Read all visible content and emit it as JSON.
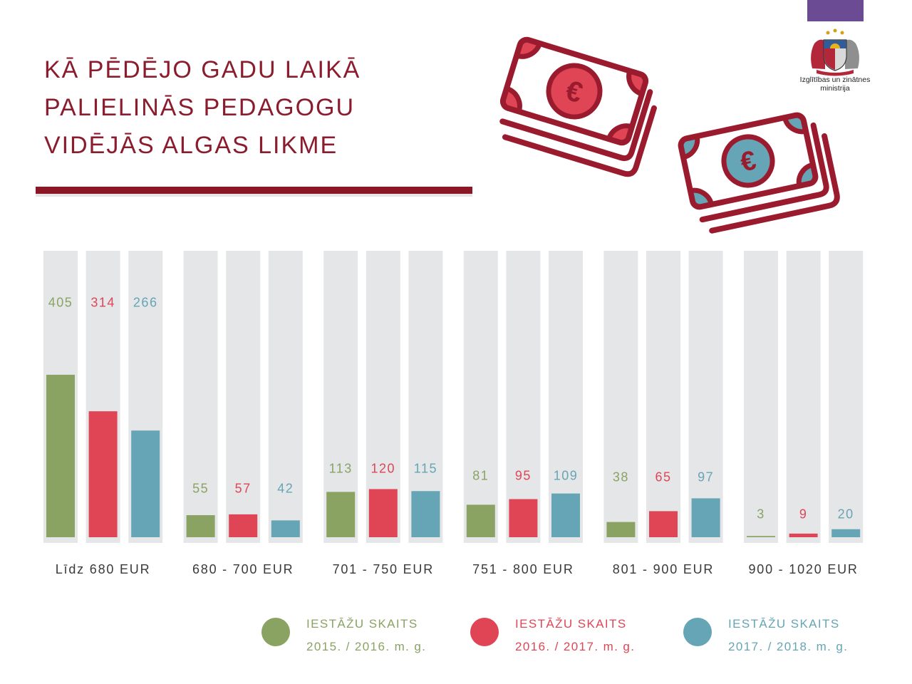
{
  "heading": {
    "lines": [
      "KĀ PĒDĒJO GADU LAIKĀ",
      "PALIELINĀS PEDAGOGU",
      "VIDĒJĀS ALGAS LIKME"
    ]
  },
  "ministry": {
    "name_line_1": "Izglītības un zinātnes",
    "name_line_2": "ministrija",
    "logo_icon": "coat-of-arms-icon"
  },
  "icons": {
    "banknotes_left": "euro-banknote-stack-icon",
    "banknotes_right": "euro-banknote-stack-icon",
    "currency_symbol": "€"
  },
  "colors": {
    "title": "#8b1c2e",
    "title_rule": "#8b1626",
    "ministry_bar": "#6a4b94",
    "column_background": "#e5e6e8",
    "category_text": "#3a3a3a",
    "icon_outline": "#9b1b2e"
  },
  "chart_data": {
    "type": "bar",
    "categories": [
      "Līdz 680 EUR",
      "680 - 700 EUR",
      "701 - 750 EUR",
      "751 - 800 EUR",
      "801 - 900 EUR",
      "900 - 1020 EUR"
    ],
    "series": [
      {
        "label": "IESTĀŽU SKAITS",
        "name": "2015. / 2016. m. g.",
        "color": "#8aa363",
        "values": [
          405,
          55,
          113,
          81,
          38,
          3
        ]
      },
      {
        "label": "IESTĀŽU SKAITS",
        "name": "2016. / 2017. m. g.",
        "color": "#e04556",
        "values": [
          314,
          57,
          120,
          95,
          65,
          9
        ]
      },
      {
        "label": "IESTĀŽU SKAITS",
        "name": "2017. / 2018. m. g.",
        "color": "#66a5b5",
        "values": [
          266,
          42,
          115,
          109,
          97,
          20
        ]
      }
    ],
    "legend_position": "bottom",
    "grid": false
  }
}
